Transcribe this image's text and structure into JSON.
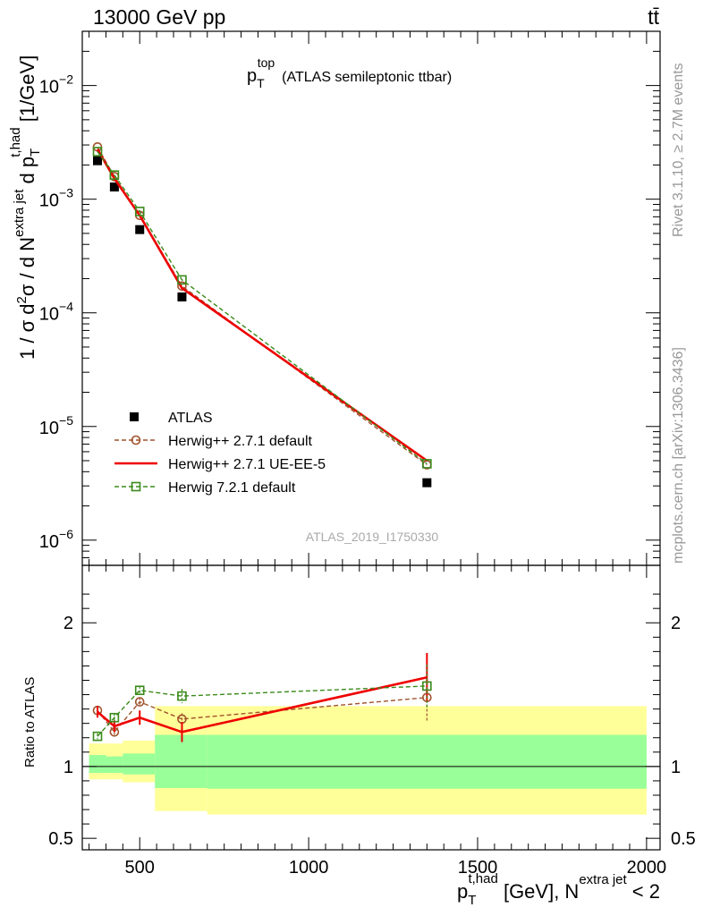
{
  "header": {
    "energy_label": "13000 GeV pp",
    "process_label": "tt̄"
  },
  "side_labels": {
    "rivet": "Rivet 3.1.10, ≥ 2.7M events",
    "mcplots": "mcplots.cern.ch [arXiv:1306.3436]"
  },
  "analysis_id": "ATLAS_2019_I1750330",
  "chart_data": [
    {
      "type": "scatter",
      "title": "p_T^top (ATLAS semileptonic ttbar)",
      "title_main": "p",
      "title_sub": "T",
      "title_sup": "top",
      "title_rest": "(ATLAS semileptonic ttbar)",
      "ylabel": "1 / σ d²σ / d N^extra jet d p_T^t,had [1/GeV]",
      "ylabel_parts": {
        "a": "1 / σ d",
        "sup1": "2",
        "b": "σ /  d N",
        "sup2": "extra jet",
        "c": " d p",
        "sub3": "T",
        "sup3": "t,had",
        "d": " [1/GeV]"
      },
      "y_scale": "log",
      "ylim": [
        6e-07,
        0.03
      ],
      "y_ticks": [
        {
          "value": 1e-06,
          "base": "10",
          "exp": "−6"
        },
        {
          "value": 1e-05,
          "base": "10",
          "exp": "−5"
        },
        {
          "value": 0.0001,
          "base": "10",
          "exp": "−4"
        },
        {
          "value": 0.001,
          "base": "10",
          "exp": "−3"
        },
        {
          "value": 0.01,
          "base": "10",
          "exp": "−2"
        }
      ],
      "xlim": [
        330,
        2040
      ],
      "legend_position": "lower-left",
      "series": [
        {
          "name": "ATLAS",
          "style": "data",
          "color": "#000000",
          "x": [
            375,
            425,
            500,
            625,
            1350
          ],
          "y": [
            0.00218,
            0.00128,
            0.00054,
            0.000138,
            3.2e-06
          ]
        },
        {
          "name": "Herwig++ 2.7.1 default",
          "style": "dashed-circle",
          "color": "#a0522d",
          "x": [
            375,
            425,
            500,
            625,
            1350
          ],
          "y": [
            0.00288,
            0.00158,
            0.00072,
            0.000172,
            4.6e-06
          ]
        },
        {
          "name": "Herwig++ 2.7.1 UE-EE-5",
          "style": "solid",
          "color": "#ee0000",
          "x": [
            375,
            425,
            500,
            625,
            1350
          ],
          "y": [
            0.00275,
            0.00152,
            0.00072,
            0.000165,
            5e-06
          ]
        },
        {
          "name": "Herwig 7.2.1 default",
          "style": "dashed-square",
          "color": "#3a8a1a",
          "x": [
            375,
            425,
            500,
            625,
            1350
          ],
          "y": [
            0.00262,
            0.00163,
            0.00078,
            0.000195,
            4.7e-06
          ]
        }
      ]
    },
    {
      "type": "scatter",
      "ylabel": "Ratio to ATLAS",
      "ylim": [
        0.42,
        2.4
      ],
      "y_ticks": [
        0.5,
        1,
        2
      ],
      "y_tick_labels": [
        "0.5",
        "1",
        "2"
      ],
      "xlim": [
        330,
        2040
      ],
      "x_ticks": [
        500,
        1000,
        1500,
        2000
      ],
      "x_tick_labels": [
        "500",
        "1000",
        "1500",
        "2000"
      ],
      "xlabel": "p_T^t,had [GeV], N^extra jet < 2",
      "xlabel_parts": {
        "a": "p",
        "sub": "T",
        "sup": "t,had",
        "b": " [GeV], N",
        "sup2": "extra jet",
        "c": " < 2"
      },
      "reference_line": 1,
      "bins": [
        {
          "lo": 350,
          "hi": 400,
          "yellow": [
            0.91,
            1.16
          ],
          "green": [
            0.955,
            1.08
          ]
        },
        {
          "lo": 400,
          "hi": 450,
          "yellow": [
            0.91,
            1.16
          ],
          "green": [
            0.955,
            1.07
          ]
        },
        {
          "lo": 450,
          "hi": 545,
          "yellow": [
            0.89,
            1.18
          ],
          "green": [
            0.945,
            1.09
          ]
        },
        {
          "lo": 545,
          "hi": 700,
          "yellow": [
            0.69,
            1.42
          ],
          "green": [
            0.85,
            1.22
          ]
        },
        {
          "lo": 700,
          "hi": 2000,
          "yellow": [
            0.665,
            1.42
          ],
          "green": [
            0.845,
            1.22
          ]
        }
      ],
      "series": [
        {
          "name": "Herwig++ 2.7.1 default",
          "style": "dashed-circle",
          "color": "#a0522d",
          "x": [
            375,
            425,
            500,
            625,
            1350
          ],
          "y": [
            1.39,
            1.24,
            1.45,
            1.33,
            1.48
          ],
          "err": [
            0.02,
            0.03,
            0.03,
            0.04,
            0.17
          ]
        },
        {
          "name": "Herwig++ 2.7.1 UE-EE-5",
          "style": "solid",
          "color": "#ee0000",
          "x": [
            375,
            425,
            500,
            625,
            1350
          ],
          "y": [
            1.38,
            1.28,
            1.34,
            1.24,
            1.62
          ],
          "err": [
            0.04,
            0.04,
            0.05,
            0.07,
            0.17
          ]
        },
        {
          "name": "Herwig 7.2.1 default",
          "style": "dashed-square",
          "color": "#3a8a1a",
          "x": [
            375,
            425,
            500,
            625,
            1350
          ],
          "y": [
            1.21,
            1.34,
            1.53,
            1.49,
            1.56
          ],
          "err": [
            0.02,
            0.03,
            0.03,
            0.05,
            0.15
          ]
        }
      ]
    }
  ]
}
